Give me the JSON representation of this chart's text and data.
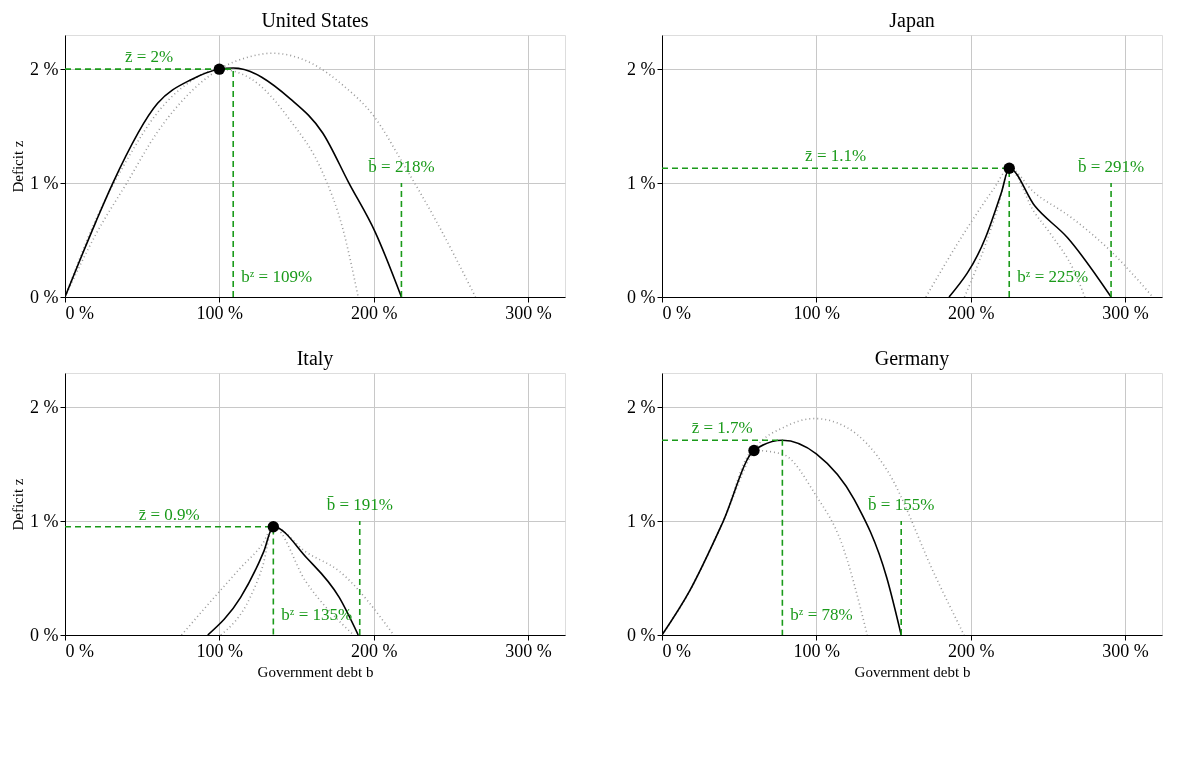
{
  "chart_data": [
    {
      "type": "line",
      "title": "United States",
      "ylabel": "Deficit z",
      "xlim": [
        0,
        324
      ],
      "ylim": [
        0,
        2.3
      ],
      "xticks": [
        {
          "value": 0,
          "label": "0 %"
        },
        {
          "value": 100,
          "label": "100 %"
        },
        {
          "value": 200,
          "label": "200 %"
        },
        {
          "value": 300,
          "label": "300 %"
        }
      ],
      "yticks": [
        {
          "value": 0,
          "label": "0 %"
        },
        {
          "value": 1,
          "label": "1 %"
        },
        {
          "value": 2,
          "label": "2 %"
        }
      ],
      "grid": true,
      "series": [
        {
          "type": "line",
          "color": "#999999",
          "line_style": "dotted",
          "x": [
            0,
            20,
            40,
            60,
            80,
            100,
            120,
            134,
            160,
            180,
            200,
            220,
            240,
            266
          ],
          "values": [
            0,
            0.55,
            1.0,
            1.45,
            1.78,
            2.0,
            2.11,
            2.14,
            2.05,
            1.86,
            1.59,
            1.15,
            0.68,
            0
          ]
        },
        {
          "type": "line",
          "color": "#999999",
          "line_style": "dotted",
          "x": [
            0,
            20,
            40,
            60,
            80,
            100,
            120,
            146,
            167,
            180,
            190
          ],
          "values": [
            0,
            0.68,
            1.2,
            1.62,
            1.88,
            2.0,
            1.92,
            1.55,
            1.09,
            0.6,
            0
          ]
        },
        {
          "type": "line",
          "color": "#000000",
          "line_style": "solid",
          "x": [
            0,
            20,
            31,
            60,
            82,
            100,
            109,
            146,
            167,
            184,
            201,
            218
          ],
          "values": [
            0,
            0.66,
            1.0,
            1.7,
            1.91,
            2.0,
            2.01,
            1.74,
            1.44,
            1.0,
            0.57,
            0
          ]
        },
        {
          "type": "line",
          "color": "#1a9a1a",
          "line_style": "dashed",
          "x": [
            0,
            109,
            109
          ],
          "values": [
            2,
            2,
            0
          ]
        },
        {
          "type": "line",
          "color": "#1a9a1a",
          "line_style": "dashed",
          "x": [
            218,
            218
          ],
          "values": [
            0,
            1.0
          ]
        },
        {
          "type": "scatter",
          "color": "#000000",
          "marker": "circle",
          "x": [
            100
          ],
          "values": [
            2.0
          ]
        }
      ],
      "annotations": [
        {
          "text": "z̄ = 2%",
          "x": 54.5,
          "y": 2
        },
        {
          "text": "b̄ = 218%",
          "x": 218,
          "y": 1.0
        },
        {
          "text": "bᶻ = 109%",
          "x": 109,
          "y": 0
        }
      ]
    },
    {
      "type": "line",
      "title": "Japan",
      "xlim": [
        0,
        324
      ],
      "ylim": [
        0,
        2.3
      ],
      "xticks": [
        {
          "value": 0,
          "label": "0 %"
        },
        {
          "value": 100,
          "label": "100 %"
        },
        {
          "value": 200,
          "label": "200 %"
        },
        {
          "value": 300,
          "label": "300 %"
        }
      ],
      "yticks": [
        {
          "value": 0,
          "label": "0 %"
        },
        {
          "value": 1,
          "label": "1 %"
        },
        {
          "value": 2,
          "label": "2 %"
        }
      ],
      "grid": true,
      "series": [
        {
          "type": "line",
          "color": "#999999",
          "line_style": "dotted",
          "x": [
            196,
            209.6,
            218,
            225,
            241,
            265,
            291,
            318
          ],
          "values": [
            0,
            0.46,
            0.8,
            1.13,
            0.92,
            0.7,
            0.4,
            0
          ]
        },
        {
          "type": "line",
          "color": "#999999",
          "line_style": "dotted",
          "x": [
            171,
            199,
            215,
            225,
            241,
            252,
            267,
            274
          ],
          "values": [
            0,
            0.63,
            0.95,
            1.13,
            0.75,
            0.55,
            0.23,
            0
          ]
        },
        {
          "type": "line",
          "color": "#000000",
          "line_style": "solid",
          "x": [
            186,
            209.6,
            220,
            225,
            241.5,
            262.8,
            291
          ],
          "values": [
            0,
            0.52,
            0.92,
            1.13,
            0.8,
            0.52,
            0
          ]
        },
        {
          "type": "line",
          "color": "#1a9a1a",
          "line_style": "dashed",
          "x": [
            0,
            225,
            225
          ],
          "values": [
            1.13,
            1.13,
            0
          ]
        },
        {
          "type": "line",
          "color": "#1a9a1a",
          "line_style": "dashed",
          "x": [
            291,
            291
          ],
          "values": [
            0,
            1.0
          ]
        },
        {
          "type": "scatter",
          "color": "#000000",
          "marker": "circle",
          "x": [
            225
          ],
          "values": [
            1.13
          ]
        }
      ],
      "annotations": [
        {
          "text": "z̄ = 1.1%",
          "x": 112.5,
          "y": 1.13
        },
        {
          "text": "b̄ = 291%",
          "x": 291,
          "y": 1.0
        },
        {
          "text": "bᶻ = 225%",
          "x": 225,
          "y": 0
        }
      ]
    },
    {
      "type": "line",
      "title": "Italy",
      "xlabel": "Government debt b",
      "ylabel": "Deficit z",
      "xlim": [
        0,
        324
      ],
      "ylim": [
        0,
        2.3
      ],
      "xticks": [
        {
          "value": 0,
          "label": "0 %"
        },
        {
          "value": 100,
          "label": "100 %"
        },
        {
          "value": 200,
          "label": "200 %"
        },
        {
          "value": 300,
          "label": "300 %"
        }
      ],
      "yticks": [
        {
          "value": 0,
          "label": "0 %"
        },
        {
          "value": 1,
          "label": "1 %"
        },
        {
          "value": 2,
          "label": "2 %"
        }
      ],
      "grid": true,
      "series": [
        {
          "type": "line",
          "color": "#999999",
          "line_style": "dotted",
          "x": [
            101,
            120,
            128,
            135,
            156,
            177.7,
            213
          ],
          "values": [
            0,
            0.33,
            0.6,
            0.95,
            0.73,
            0.56,
            0
          ]
        },
        {
          "type": "line",
          "color": "#999999",
          "line_style": "dotted",
          "x": [
            75.5,
            113.8,
            128,
            135,
            156,
            187
          ],
          "values": [
            0,
            0.59,
            0.8,
            0.95,
            0.47,
            0
          ]
        },
        {
          "type": "line",
          "color": "#000000",
          "line_style": "solid",
          "x": [
            92.5,
            113.8,
            128.7,
            135,
            156.4,
            177.7,
            190
          ],
          "values": [
            0,
            0.33,
            0.73,
            0.95,
            0.68,
            0.33,
            0
          ]
        },
        {
          "type": "line",
          "color": "#1a9a1a",
          "line_style": "dashed",
          "x": [
            0,
            135,
            135
          ],
          "values": [
            0.95,
            0.95,
            0
          ]
        },
        {
          "type": "line",
          "color": "#1a9a1a",
          "line_style": "dashed",
          "x": [
            191,
            191
          ],
          "values": [
            0,
            1.0
          ]
        },
        {
          "type": "scatter",
          "color": "#000000",
          "marker": "circle",
          "x": [
            135
          ],
          "values": [
            0.95
          ]
        }
      ],
      "annotations": [
        {
          "text": "z̄ = 0.9%",
          "x": 67.5,
          "y": 0.95
        },
        {
          "text": "b̄ = 191%",
          "x": 191,
          "y": 1.0
        },
        {
          "text": "bᶻ = 135%",
          "x": 135,
          "y": 0
        }
      ]
    },
    {
      "type": "line",
      "title": "Germany",
      "xlabel": "Government debt b",
      "xlim": [
        0,
        324
      ],
      "ylim": [
        0,
        2.3
      ],
      "xticks": [
        {
          "value": 0,
          "label": "0 %"
        },
        {
          "value": 100,
          "label": "100 %"
        },
        {
          "value": 200,
          "label": "200 %"
        },
        {
          "value": 300,
          "label": "300 %"
        }
      ],
      "yticks": [
        {
          "value": 0,
          "label": "0 %"
        },
        {
          "value": 1,
          "label": "1 %"
        },
        {
          "value": 2,
          "label": "2 %"
        }
      ],
      "grid": true,
      "series": [
        {
          "type": "line",
          "color": "#999999",
          "line_style": "dotted",
          "x": [
            0,
            18,
            39.4,
            59.6,
            80,
            99,
            120,
            145.7,
            177.7,
            195.7
          ],
          "values": [
            0,
            0.39,
            0.99,
            1.62,
            1.83,
            1.9,
            1.82,
            1.45,
            0.5,
            0
          ]
        },
        {
          "type": "line",
          "color": "#999999",
          "line_style": "dotted",
          "x": [
            0,
            18,
            39.4,
            59.6,
            77.7,
            100,
            116,
            133
          ],
          "values": [
            0,
            0.39,
            0.99,
            1.62,
            1.59,
            1.22,
            0.82,
            0
          ]
        },
        {
          "type": "line",
          "color": "#000000",
          "line_style": "solid",
          "x": [
            0,
            18,
            39.4,
            59.6,
            78,
            100,
            124.5,
            145.7,
            155
          ],
          "values": [
            0,
            0.39,
            0.99,
            1.62,
            1.71,
            1.59,
            1.19,
            0.5,
            0
          ]
        },
        {
          "type": "line",
          "color": "#1a9a1a",
          "line_style": "dashed",
          "x": [
            0,
            78,
            78
          ],
          "values": [
            1.71,
            1.71,
            0
          ]
        },
        {
          "type": "line",
          "color": "#1a9a1a",
          "line_style": "dashed",
          "x": [
            155,
            155
          ],
          "values": [
            0,
            1.0
          ]
        },
        {
          "type": "scatter",
          "color": "#000000",
          "marker": "circle",
          "x": [
            59.6
          ],
          "values": [
            1.62
          ]
        }
      ],
      "annotations": [
        {
          "text": "z̄ = 1.7%",
          "x": 39,
          "y": 1.71
        },
        {
          "text": "b̄ = 155%",
          "x": 155,
          "y": 1.0
        },
        {
          "text": "bᶻ = 78%",
          "x": 78,
          "y": 0
        }
      ]
    }
  ]
}
